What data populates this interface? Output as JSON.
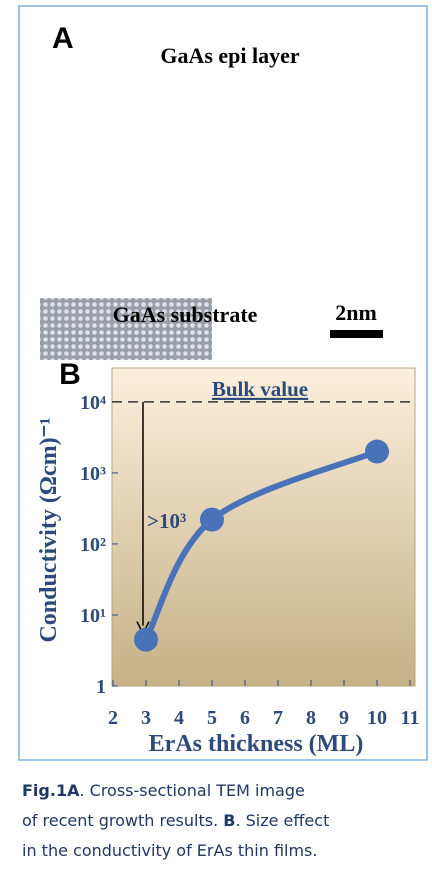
{
  "panel_a": {
    "label": "A",
    "top_label": "GaAs epi layer",
    "bottom_label": "GaAs substrate",
    "scale_bar": "2nm"
  },
  "chart_data": {
    "type": "line",
    "panel_label": "B",
    "x_label": "ErAs thickness (ML)",
    "y_label": "Conductivity (Ωcm)⁻¹",
    "x": [
      3,
      5,
      10
    ],
    "values": [
      4.5,
      220,
      2000
    ],
    "color": "#4a72b8",
    "log_y": true,
    "xlim": [
      2,
      11
    ],
    "xticks": [
      2,
      3,
      4,
      5,
      6,
      7,
      8,
      9,
      10,
      11
    ],
    "ylim": [
      1,
      30000
    ],
    "yticks": [
      1,
      {
        "value": 10,
        "label": "10¹"
      },
      {
        "value": 100,
        "label": "10²"
      },
      {
        "value": 1000,
        "label": "10³"
      },
      {
        "value": 10000,
        "label": "10⁴"
      }
    ],
    "reference_line": {
      "text": "Bulk value",
      "y": 10000
    },
    "arrow": {
      "text": ">10³",
      "x": 3,
      "y_from": 10000,
      "y_to": 4.5
    }
  },
  "caption": {
    "fig": "Fig.1",
    "a": "A",
    "a_text": ". Cross-sectional TEM image",
    "line2": "of recent growth results. ",
    "b": "B",
    "b_text": ". Size effect",
    "line3": "in the conductivity of ErAs thin films."
  }
}
